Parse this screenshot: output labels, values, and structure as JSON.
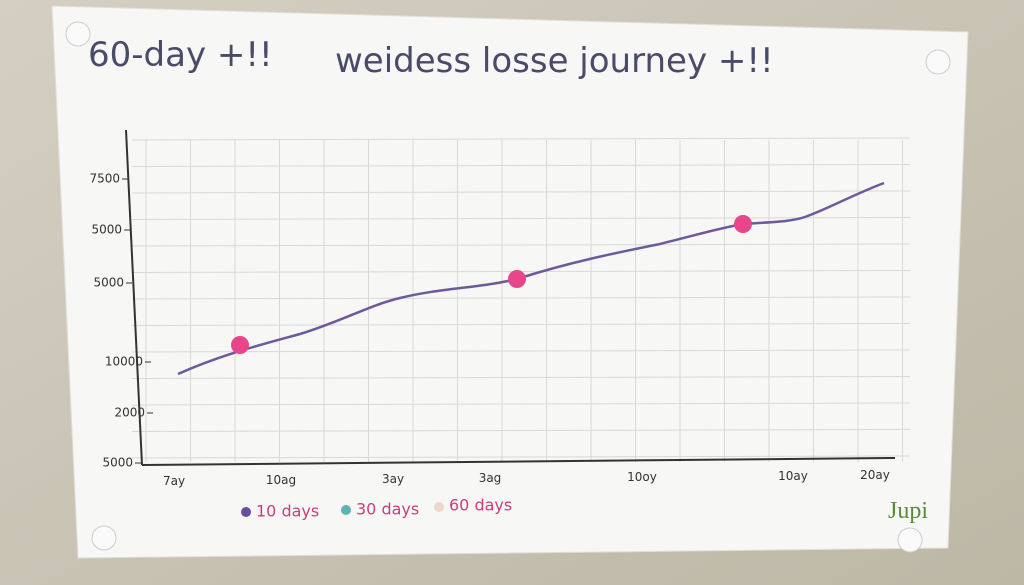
{
  "title": {
    "left": "60-day +!!",
    "right": "weidess losse journey +!!"
  },
  "y_labels": [
    "7500",
    "5000",
    "5000",
    "10000",
    "2000",
    "5000"
  ],
  "x_labels": [
    "7ay",
    "10ag",
    "3ay",
    "3ag",
    "10oy",
    "10ay",
    "20ay"
  ],
  "legend": [
    "10 days",
    "30 days",
    "60 days"
  ],
  "logo": "Jupi"
}
